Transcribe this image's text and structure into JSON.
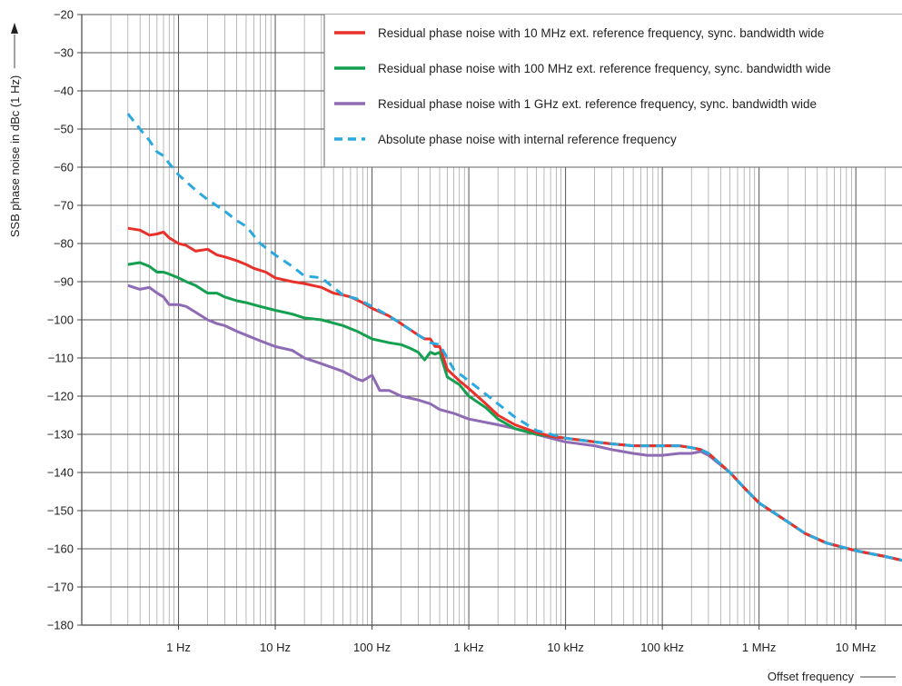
{
  "chart_data": {
    "type": "line",
    "title": "",
    "xlabel": "Offset frequency",
    "ylabel": "SSB phase noise in dBc (1 Hz)",
    "x_scale": "log",
    "xlim": [
      0.1,
      30000000
    ],
    "ylim": [
      -180,
      -20
    ],
    "grid": true,
    "legend_position": "top-right",
    "x_ticks": [
      {
        "value": 1,
        "label": "1 Hz"
      },
      {
        "value": 10,
        "label": "10 Hz"
      },
      {
        "value": 100,
        "label": "100 Hz"
      },
      {
        "value": 1000,
        "label": "1 kHz"
      },
      {
        "value": 10000,
        "label": "10 kHz"
      },
      {
        "value": 100000,
        "label": "100 kHz"
      },
      {
        "value": 1000000,
        "label": "1 MHz"
      },
      {
        "value": 10000000,
        "label": "10 MHz"
      }
    ],
    "y_ticks": [
      {
        "value": -20,
        "label": "−20"
      },
      {
        "value": -30,
        "label": "−30"
      },
      {
        "value": -40,
        "label": "−40"
      },
      {
        "value": -50,
        "label": "−50"
      },
      {
        "value": -60,
        "label": "−60"
      },
      {
        "value": -70,
        "label": "−70"
      },
      {
        "value": -80,
        "label": "−80"
      },
      {
        "value": -90,
        "label": "−90"
      },
      {
        "value": -100,
        "label": "−100"
      },
      {
        "value": -110,
        "label": "−110"
      },
      {
        "value": -120,
        "label": "−120"
      },
      {
        "value": -130,
        "label": "−130"
      },
      {
        "value": -140,
        "label": "−140"
      },
      {
        "value": -150,
        "label": "−150"
      },
      {
        "value": -160,
        "label": "−160"
      },
      {
        "value": -170,
        "label": "−170"
      },
      {
        "value": -180,
        "label": "−180"
      }
    ],
    "series": [
      {
        "name": "Residual phase noise with 10 MHz ext. reference frequency, sync. bandwidth wide",
        "color": "#e8312a",
        "dash": false,
        "x": [
          0.3,
          0.4,
          0.5,
          0.6,
          0.7,
          0.8,
          1,
          1.2,
          1.5,
          2,
          2.5,
          3,
          4,
          5,
          6,
          8,
          10,
          15,
          20,
          30,
          40,
          50,
          60,
          80,
          100,
          150,
          200,
          300,
          350,
          400,
          450,
          500,
          600,
          800,
          1000,
          1500,
          2000,
          3000,
          5000,
          7000,
          10000,
          20000,
          30000,
          50000,
          100000,
          150000,
          200000,
          250000,
          300000,
          500000,
          700000,
          1000000,
          2000000,
          3000000,
          5000000,
          10000000,
          20000000,
          30000000
        ],
        "y": [
          -76,
          -76.5,
          -77.8,
          -77.5,
          -77,
          -78.5,
          -80,
          -80.5,
          -82,
          -81.5,
          -83,
          -83.5,
          -84.5,
          -85.5,
          -86.5,
          -87.5,
          -89,
          -90,
          -90.5,
          -91.5,
          -93,
          -93.5,
          -94,
          -95.5,
          -97,
          -99,
          -101,
          -104,
          -105,
          -105,
          -107,
          -107,
          -113,
          -116,
          -118,
          -122,
          -125,
          -127.5,
          -129.5,
          -130.5,
          -131,
          -132,
          -132.5,
          -133,
          -133,
          -133,
          -133.5,
          -134,
          -135,
          -140,
          -144,
          -148,
          -153,
          -156,
          -158.5,
          -160.5,
          -162,
          -163
        ]
      },
      {
        "name": "Residual phase noise with 100 MHz ext. reference frequency, sync. bandwidth wide",
        "color": "#15a050",
        "dash": false,
        "x": [
          0.3,
          0.4,
          0.5,
          0.6,
          0.7,
          0.8,
          1,
          1.2,
          1.5,
          2,
          2.5,
          3,
          4,
          5,
          7,
          10,
          15,
          20,
          30,
          50,
          70,
          100,
          150,
          200,
          250,
          300,
          350,
          400,
          450,
          500,
          600,
          800,
          1000,
          1500,
          2000,
          3000,
          5000,
          7000,
          10000,
          20000,
          30000,
          50000,
          100000,
          150000,
          200000,
          250000,
          300000,
          500000,
          700000,
          1000000,
          2000000,
          3000000,
          5000000,
          10000000,
          20000000,
          30000000
        ],
        "y": [
          -85.5,
          -85,
          -86,
          -87.5,
          -87.5,
          -88,
          -89,
          -90,
          -91,
          -93,
          -93,
          -94,
          -95,
          -95.5,
          -96.5,
          -97.5,
          -98.5,
          -99.5,
          -100,
          -101.5,
          -103,
          -105,
          -106,
          -106.5,
          -107.5,
          -108.5,
          -110.5,
          -108.5,
          -109,
          -108.5,
          -115,
          -117,
          -120,
          -123,
          -126,
          -128.5,
          -130,
          -130.5,
          -131,
          -132,
          -132.5,
          -133,
          -133,
          -133,
          -133.5,
          -134,
          -135,
          -140,
          -144,
          -148,
          -153,
          -156,
          -158.5,
          -160.5,
          -162,
          -163
        ]
      },
      {
        "name": "Residual phase noise with 1 GHz ext. reference frequency, sync. bandwidth wide",
        "color": "#8e6bb4",
        "dash": false,
        "x": [
          0.3,
          0.4,
          0.5,
          0.6,
          0.7,
          0.8,
          1,
          1.2,
          1.5,
          2,
          2.5,
          3,
          4,
          5,
          7,
          10,
          15,
          20,
          30,
          50,
          70,
          80,
          100,
          120,
          150,
          200,
          300,
          400,
          500,
          700,
          1000,
          2000,
          3000,
          5000,
          7000,
          10000,
          20000,
          30000,
          50000,
          70000,
          100000,
          150000,
          200000,
          250000,
          300000,
          500000,
          700000,
          1000000,
          2000000,
          3000000,
          5000000,
          10000000,
          20000000,
          30000000
        ],
        "y": [
          -91,
          -92,
          -91.5,
          -93,
          -94,
          -96,
          -96,
          -96.5,
          -98,
          -100,
          -101,
          -101.5,
          -103,
          -104,
          -105.5,
          -107,
          -108,
          -110,
          -111.5,
          -113.5,
          -115.5,
          -116,
          -114.5,
          -118.5,
          -118.5,
          -120,
          -121,
          -122,
          -123.5,
          -124.5,
          -126,
          -127.5,
          -128.5,
          -130,
          -131,
          -132,
          -133,
          -134,
          -135,
          -135.5,
          -135.5,
          -135,
          -135,
          -134.5,
          -135.5,
          -140,
          -144,
          -148,
          -153,
          -156,
          -158.5,
          -160.5,
          -162,
          -163
        ]
      },
      {
        "name": "Absolute phase noise with internal reference frequency",
        "color": "#2aa8e0",
        "dash": true,
        "x": [
          0.3,
          0.4,
          0.5,
          0.6,
          0.7,
          0.8,
          1,
          1.5,
          2,
          3,
          4,
          5,
          7,
          10,
          15,
          20,
          30,
          50,
          70,
          100,
          150,
          200,
          300,
          400,
          500,
          700,
          1000,
          2000,
          3000,
          5000,
          10000,
          20000,
          30000,
          50000,
          100000,
          150000,
          200000,
          250000,
          300000,
          500000,
          700000,
          1000000,
          2000000,
          3000000,
          5000000,
          10000000,
          20000000,
          30000000
        ],
        "y": [
          -46,
          -50,
          -53,
          -56,
          -57,
          -59,
          -62,
          -66,
          -68.5,
          -71.5,
          -74,
          -75.5,
          -80,
          -83,
          -86,
          -88.5,
          -89,
          -93.5,
          -94.5,
          -96.5,
          -99,
          -101,
          -104,
          -106,
          -106.5,
          -113,
          -116,
          -122,
          -125.5,
          -129,
          -131,
          -132,
          -132.5,
          -133,
          -133,
          -133,
          -133.5,
          -134,
          -135,
          -140,
          -144,
          -148,
          -153,
          -156,
          -158.5,
          -160.5,
          -162,
          -163
        ]
      }
    ]
  }
}
